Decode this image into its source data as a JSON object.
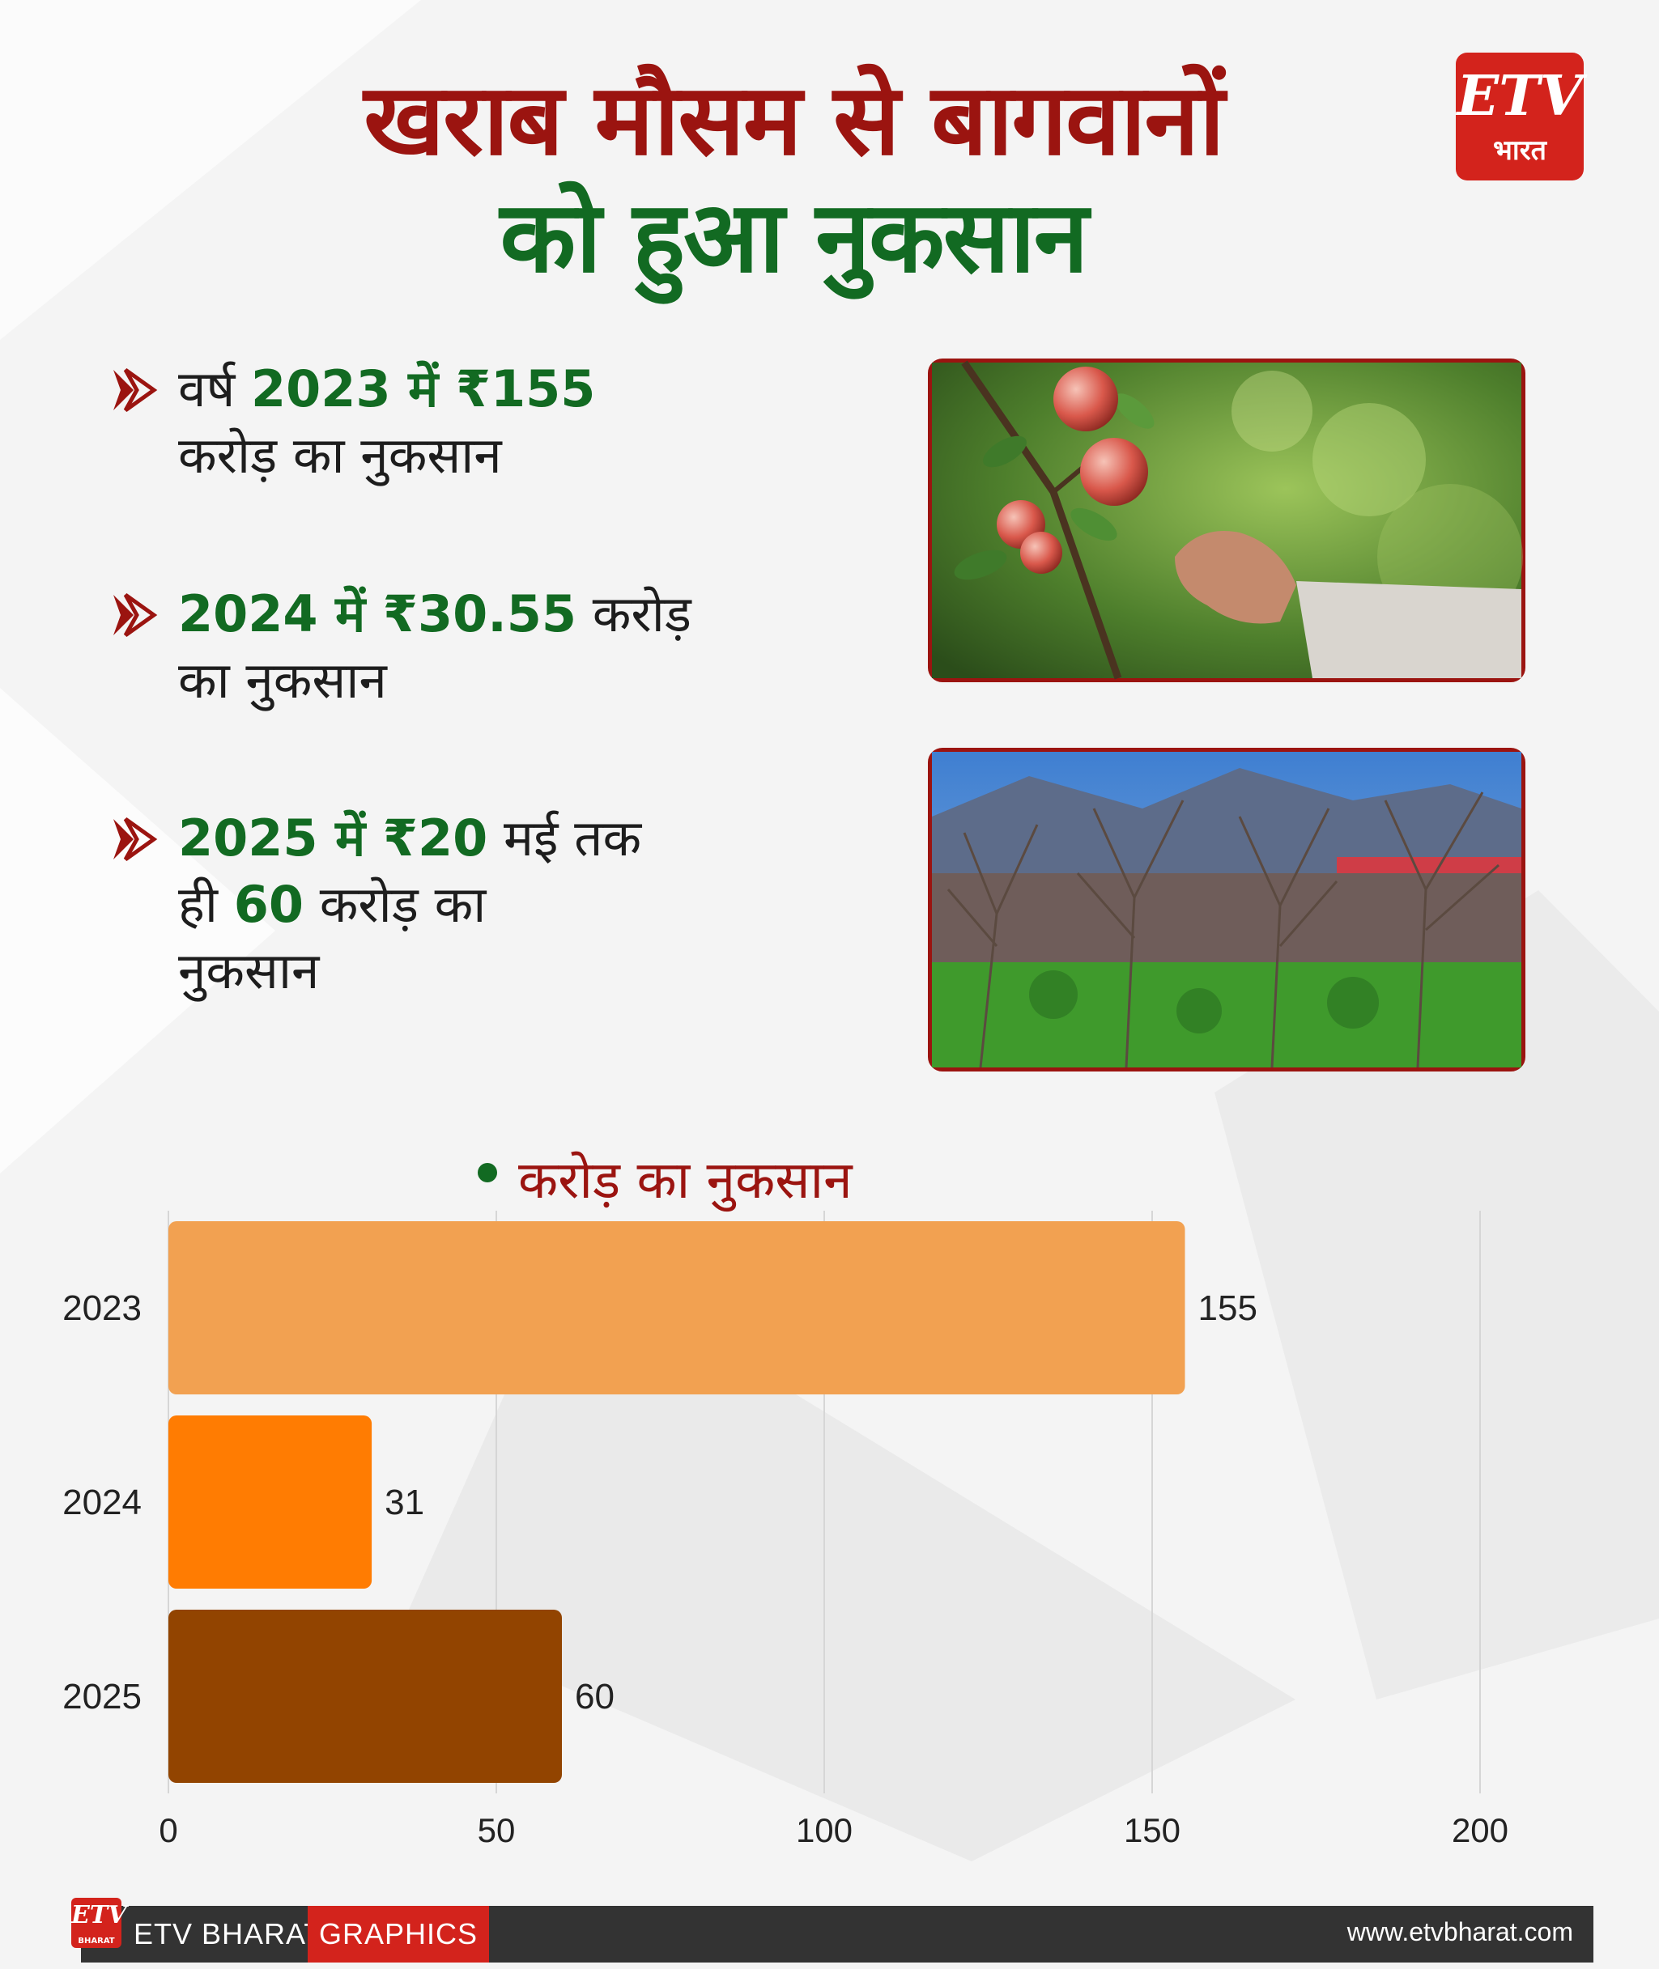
{
  "header": {
    "title_line1": "खराब मौसम से बागवानों",
    "title_line2": "को हुआ नुकसान",
    "logo_text": "ETV",
    "logo_sub": "भारत"
  },
  "points": [
    {
      "pre": "वर्ष ",
      "bold": "2023 में ₹155",
      "post": "",
      "line2": "करोड़ का नुकसान",
      "line3": ""
    },
    {
      "pre": "",
      "bold": "2024 में ₹30.55",
      "post": " करोड़",
      "line2": "का नुकसान",
      "line3": ""
    },
    {
      "pre": "",
      "bold": "2025 में ₹20",
      "post": " मई तक",
      "line2_pre": "ही ",
      "line2_bold": "60",
      "line2_post": " करोड़ का",
      "line3": "नुकसान"
    }
  ],
  "photos": [
    {
      "icon": "apple-orchard-photo-icon"
    },
    {
      "icon": "bare-orchard-photo-icon"
    }
  ],
  "chart_data": {
    "type": "bar",
    "orientation": "horizontal",
    "title": "",
    "series": [
      {
        "name": "करोड़ का नुकसान",
        "values": [
          155,
          31,
          60
        ]
      }
    ],
    "categories": [
      "2023",
      "2024",
      "2025"
    ],
    "values": [
      155,
      31,
      60
    ],
    "value_labels": [
      "155",
      "31",
      "60"
    ],
    "bar_colors": [
      "#f2a151",
      "#ff7c02",
      "#924400"
    ],
    "xlim": [
      0,
      200
    ],
    "xticks": [
      "0",
      "50",
      "100",
      "150",
      "200"
    ],
    "xlabel": "",
    "ylabel": "",
    "grid": true,
    "legend": "top-center"
  },
  "footer": {
    "logo_text": "ETV",
    "logo_sub": "BHARAT",
    "brand": "ETV BHARAT",
    "graphics": "GRAPHICS",
    "website": "www.etvbharat.com"
  }
}
